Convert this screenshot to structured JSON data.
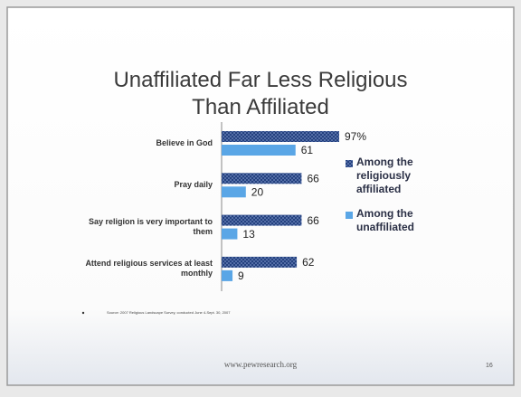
{
  "chart_data": {
    "type": "bar",
    "orientation": "horizontal",
    "title": "Unaffiliated Far Less Religious Than Affiliated",
    "categories": [
      "Believe in God",
      "Pray daily",
      "Say religion is very important to them",
      "Attend religious services at least monthly"
    ],
    "series": [
      {
        "name": "Among the religiously affiliated",
        "color": "#24417f",
        "values": [
          97,
          66,
          66,
          62
        ],
        "value_labels": [
          "97%",
          "66",
          "66",
          "62"
        ]
      },
      {
        "name": "Among the unaffiliated",
        "color": "#5aa6e6",
        "values": [
          61,
          20,
          13,
          9
        ]
      }
    ],
    "legend": "right",
    "source": "Source: 2007 Religious Landscape Survey, conducted June 4-Sept. 30, 2007",
    "footer": "www.pewresearch.org",
    "page_number": "16"
  }
}
